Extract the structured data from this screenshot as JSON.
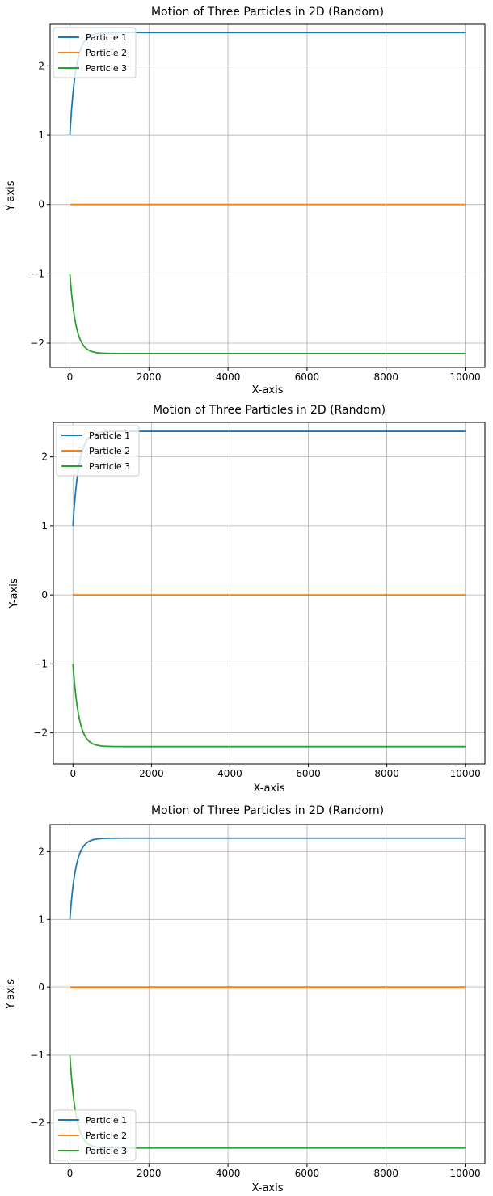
{
  "chart_data": [
    {
      "type": "line",
      "title": "Motion of Three Particles in 2D (Random)",
      "xlabel": "X-axis",
      "ylabel": "Y-axis",
      "xlim": [
        -500,
        10500
      ],
      "ylim": [
        -2.35,
        2.6
      ],
      "xticks": [
        0,
        2000,
        4000,
        6000,
        8000,
        10000
      ],
      "xtick_labels": [
        "0",
        "2000",
        "4000",
        "6000",
        "8000",
        "10000"
      ],
      "yticks": [
        -2,
        -1,
        0,
        1,
        2
      ],
      "ytick_labels": [
        "−2",
        "−1",
        "0",
        "1",
        "2"
      ],
      "grid": true,
      "legend": "upper left",
      "series": [
        {
          "name": "Particle 1",
          "color": "#1f77b4",
          "start": 1.0,
          "end": 2.48,
          "tau": 150
        },
        {
          "name": "Particle 2",
          "color": "#ff7f0e",
          "start": 0.0,
          "end": 0.0,
          "tau": 150
        },
        {
          "name": "Particle 3",
          "color": "#2ca02c",
          "start": -1.0,
          "end": -2.15,
          "tau": 150
        }
      ]
    },
    {
      "type": "line",
      "title": "Motion of Three Particles in 2D (Random)",
      "xlabel": "X-axis",
      "ylabel": "Y-axis",
      "xlim": [
        -500,
        10500
      ],
      "ylim": [
        -2.45,
        2.5
      ],
      "xticks": [
        0,
        2000,
        4000,
        6000,
        8000,
        10000
      ],
      "xtick_labels": [
        "0",
        "2000",
        "4000",
        "6000",
        "8000",
        "10000"
      ],
      "yticks": [
        -2,
        -1,
        0,
        1,
        2
      ],
      "ytick_labels": [
        "−2",
        "−1",
        "0",
        "1",
        "2"
      ],
      "grid": true,
      "legend": "upper left",
      "series": [
        {
          "name": "Particle 1",
          "color": "#1f77b4",
          "start": 1.0,
          "end": 2.37,
          "tau": 150
        },
        {
          "name": "Particle 2",
          "color": "#ff7f0e",
          "start": 0.0,
          "end": 0.0,
          "tau": 150
        },
        {
          "name": "Particle 3",
          "color": "#2ca02c",
          "start": -1.0,
          "end": -2.2,
          "tau": 150
        }
      ]
    },
    {
      "type": "line",
      "title": "Motion of Three Particles in 2D (Random)",
      "xlabel": "X-axis",
      "ylabel": "Y-axis",
      "xlim": [
        -500,
        10500
      ],
      "ylim": [
        -2.6,
        2.4
      ],
      "xticks": [
        0,
        2000,
        4000,
        6000,
        8000,
        10000
      ],
      "xtick_labels": [
        "0",
        "2000",
        "4000",
        "6000",
        "8000",
        "10000"
      ],
      "yticks": [
        -2,
        -1,
        0,
        1,
        2
      ],
      "ytick_labels": [
        "−2",
        "−1",
        "0",
        "1",
        "2"
      ],
      "grid": true,
      "legend": "lower left",
      "series": [
        {
          "name": "Particle 1",
          "color": "#1f77b4",
          "start": 1.0,
          "end": 2.2,
          "tau": 150
        },
        {
          "name": "Particle 2",
          "color": "#ff7f0e",
          "start": 0.0,
          "end": 0.0,
          "tau": 150
        },
        {
          "name": "Particle 3",
          "color": "#2ca02c",
          "start": -1.0,
          "end": -2.37,
          "tau": 150
        }
      ]
    }
  ]
}
